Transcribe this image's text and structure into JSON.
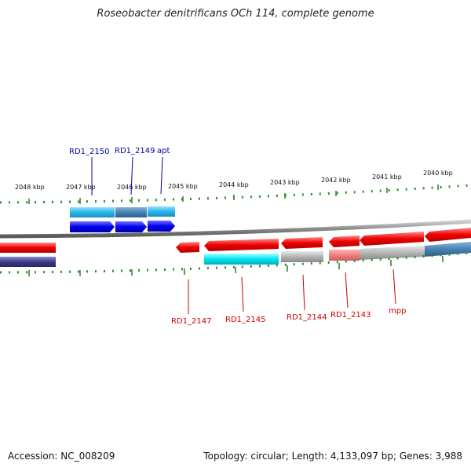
{
  "title": "Roseobacter denitrificans OCh 114, complete genome",
  "footer": {
    "accession": "Accession: NC_008209",
    "summary": "Topology: circular; Length: 4,133,097 bp; Genes: 3,988"
  },
  "ruler": {
    "labels": [
      "2048 kbp",
      "2047 kbp",
      "2046 kbp",
      "2045 kbp",
      "2044 kbp",
      "2043 kbp",
      "2042 kbp",
      "2041 kbp",
      "2040 kbp"
    ],
    "tick_color": "#2e8b2e"
  },
  "genes_top": [
    {
      "label": "RD1_2150",
      "color": "#0000aa"
    },
    {
      "label": "RD1_2149",
      "color": "#0000aa"
    },
    {
      "label": "apt",
      "color": "#0000aa"
    }
  ],
  "genes_bottom": [
    {
      "label": "RD1_2147",
      "color": "#cc0000"
    },
    {
      "label": "RD1_2145",
      "color": "#cc0000"
    },
    {
      "label": "RD1_2144",
      "color": "#cc0000"
    },
    {
      "label": "RD1_2143",
      "color": "#cc0000"
    },
    {
      "label": "mpp",
      "color": "#cc0000"
    }
  ],
  "colors": {
    "forward_gene": "#0000ee",
    "reverse_gene": "#ee0000",
    "backbone": "#8c8c8c",
    "cog_light_blue": "#29b6e8",
    "cog_steel_blue": "#4682b4",
    "cog_cyan": "#00e5ee",
    "cog_gray": "#b4b4b4",
    "cog_pink": "#f08080",
    "cog_purple": "#3c3c8c"
  }
}
